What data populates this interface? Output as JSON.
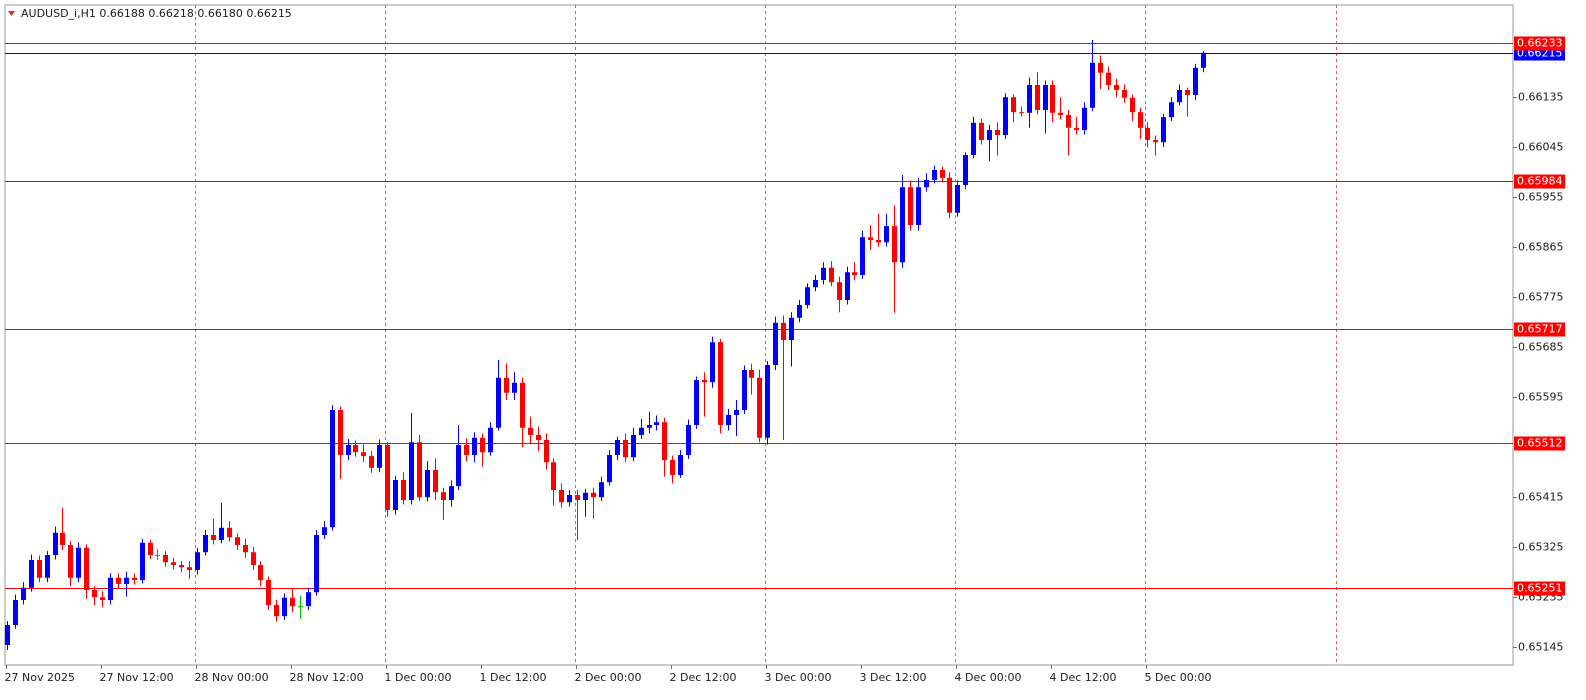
{
  "chart_data": {
    "type": "candlestick",
    "title": "AUDUSD_i,H1  0.66188 0.66218 0.66180 0.66215",
    "categories": [
      "27 Nov 2025",
      null,
      null,
      null,
      null,
      null,
      null,
      null,
      null,
      null,
      null,
      null,
      "27 Nov 12:00",
      null,
      null,
      null,
      null,
      null,
      null,
      null,
      null,
      null,
      null,
      null,
      "28 Nov 00:00",
      null,
      null,
      null,
      null,
      null,
      null,
      null,
      null,
      null,
      null,
      null,
      "28 Nov 12:00",
      null,
      null,
      null,
      null,
      null,
      null,
      null,
      null,
      null,
      null,
      null,
      "1 Dec 00:00",
      null,
      null,
      null,
      null,
      null,
      null,
      null,
      null,
      null,
      null,
      null,
      "1 Dec 12:00",
      null,
      null,
      null,
      null,
      null,
      null,
      null,
      null,
      null,
      null,
      null,
      "2 Dec 00:00",
      null,
      null,
      null,
      null,
      null,
      null,
      null,
      null,
      null,
      null,
      null,
      "2 Dec 12:00",
      null,
      null,
      null,
      null,
      null,
      null,
      null,
      null,
      null,
      null,
      null,
      "3 Dec 00:00",
      null,
      null,
      null,
      null,
      null,
      null,
      null,
      null,
      null,
      null,
      null,
      "3 Dec 12:00",
      null,
      null,
      null,
      null,
      null,
      null,
      null,
      null,
      null,
      null,
      null,
      "4 Dec 00:00",
      null,
      null,
      null,
      null,
      null,
      null,
      null,
      null,
      null,
      null,
      null,
      "4 Dec 12:00",
      null,
      null,
      null,
      null,
      null,
      null,
      null,
      null,
      null,
      null,
      null,
      "5 Dec 00:00",
      null,
      null,
      null,
      null,
      null,
      null,
      null
    ],
    "open": [
      0.65149,
      0.65185,
      0.6523,
      0.65252,
      0.65302,
      0.6527,
      0.65311,
      0.65351,
      0.65329,
      0.6527,
      0.65324,
      0.65248,
      0.65235,
      0.6523,
      0.6527,
      0.65259,
      0.6527,
      0.65266,
      0.65333,
      0.65311,
      0.65311,
      0.65298,
      0.65293,
      0.65289,
      0.65284,
      0.65316,
      0.65347,
      0.65338,
      0.6536,
      0.65343,
      0.65329,
      0.65316,
      0.65293,
      0.65266,
      0.65221,
      0.65201,
      0.65234,
      0.65219,
      0.65219,
      0.65244,
      0.65347,
      0.65361,
      0.65572,
      0.65491,
      0.65509,
      0.65496,
      0.65489,
      0.65468,
      0.65509,
      0.65392,
      0.65446,
      0.6541,
      0.65514,
      0.65415,
      0.65464,
      0.65424,
      0.6541,
      0.65435,
      0.65509,
      0.65491,
      0.65522,
      0.65496,
      0.6554,
      0.6563,
      0.65603,
      0.65621,
      0.6554,
      0.65527,
      0.65518,
      0.65478,
      0.65428,
      0.65406,
      0.65419,
      0.6541,
      0.65423,
      0.65415,
      0.65442,
      0.65491,
      0.65518,
      0.65487,
      0.65527,
      0.6554,
      0.65545,
      0.6555,
      0.65482,
      0.65455,
      0.65491,
      0.65545,
      0.65626,
      0.65622,
      0.65694,
      0.65545,
      0.65563,
      0.65572,
      0.65644,
      0.6563,
      0.65522,
      0.65653,
      0.65729,
      0.65698,
      0.65738,
      0.65761,
      0.65793,
      0.65806,
      0.65828,
      0.65802,
      0.6577,
      0.6582,
      0.65815,
      0.65883,
      0.65878,
      0.65874,
      0.65903,
      0.65838,
      0.65973,
      0.65905,
      0.65973,
      0.65986,
      0.66004,
      0.6599,
      0.65927,
      0.65977,
      0.66031,
      0.66089,
      0.66058,
      0.66076,
      0.66067,
      0.66135,
      0.66108,
      0.66107,
      0.66157,
      0.66112,
      0.66157,
      0.66107,
      0.66103,
      0.6608,
      0.66076,
      0.66116,
      0.66197,
      0.66179,
      0.66157,
      0.66148,
      0.66134,
      0.66108,
      0.6608,
      0.66058,
      0.66054,
      0.66099,
      0.66126,
      0.66148,
      0.66139,
      0.66188
    ],
    "high": [
      0.65192,
      0.6524,
      0.65262,
      0.65312,
      0.6531,
      0.65318,
      0.65362,
      0.65396,
      0.65336,
      0.65334,
      0.6533,
      0.65255,
      0.65246,
      0.65278,
      0.65278,
      0.65281,
      0.65278,
      0.6534,
      0.65338,
      0.65322,
      0.65318,
      0.65306,
      0.653,
      0.653,
      0.65324,
      0.65356,
      0.65376,
      0.65405,
      0.65372,
      0.6535,
      0.6534,
      0.65325,
      0.653,
      0.65272,
      0.6523,
      0.65242,
      0.6525,
      0.65237,
      0.65252,
      0.65356,
      0.65372,
      0.65581,
      0.65578,
      0.6552,
      0.65517,
      0.6551,
      0.65498,
      0.65519,
      0.65514,
      0.65453,
      0.6546,
      0.65567,
      0.65527,
      0.6548,
      0.65485,
      0.65432,
      0.65445,
      0.65545,
      0.65521,
      0.65532,
      0.6553,
      0.6555,
      0.65662,
      0.65656,
      0.6564,
      0.6563,
      0.6556,
      0.65542,
      0.6553,
      0.65485,
      0.6544,
      0.65428,
      0.65428,
      0.6543,
      0.65432,
      0.65452,
      0.655,
      0.65524,
      0.6553,
      0.6554,
      0.65556,
      0.65569,
      0.65562,
      0.65558,
      0.6549,
      0.655,
      0.65555,
      0.65632,
      0.6564,
      0.65704,
      0.657,
      0.65574,
      0.6559,
      0.65652,
      0.65655,
      0.65645,
      0.6566,
      0.6574,
      0.65742,
      0.65748,
      0.6577,
      0.658,
      0.65815,
      0.65838,
      0.6584,
      0.65812,
      0.6583,
      0.65838,
      0.65895,
      0.65905,
      0.65925,
      0.65925,
      0.6594,
      0.65995,
      0.65985,
      0.6599,
      0.65998,
      0.66012,
      0.6601,
      0.66,
      0.65985,
      0.66036,
      0.661,
      0.66096,
      0.66085,
      0.6609,
      0.66142,
      0.6614,
      0.66118,
      0.6617,
      0.6618,
      0.66165,
      0.66165,
      0.66135,
      0.66112,
      0.661,
      0.66126,
      0.66238,
      0.6621,
      0.6619,
      0.66168,
      0.66158,
      0.6614,
      0.66116,
      0.6609,
      0.66066,
      0.66105,
      0.66135,
      0.66158,
      0.66152,
      0.66195,
      0.66218
    ],
    "low": [
      0.6514,
      0.65178,
      0.65222,
      0.65245,
      0.65262,
      0.65262,
      0.65303,
      0.6532,
      0.65255,
      0.65262,
      0.65232,
      0.65221,
      0.65217,
      0.65222,
      0.6525,
      0.65236,
      0.65258,
      0.6526,
      0.65304,
      0.65302,
      0.6529,
      0.65285,
      0.6528,
      0.65268,
      0.65276,
      0.6531,
      0.6533,
      0.65332,
      0.65335,
      0.6532,
      0.65306,
      0.65284,
      0.65255,
      0.65212,
      0.65191,
      0.65194,
      0.65208,
      0.65196,
      0.65212,
      0.65238,
      0.6534,
      0.65355,
      0.65448,
      0.65482,
      0.65488,
      0.65478,
      0.65459,
      0.6546,
      0.6538,
      0.65384,
      0.65402,
      0.65402,
      0.65408,
      0.65408,
      0.6541,
      0.65374,
      0.65398,
      0.65428,
      0.6548,
      0.65478,
      0.6547,
      0.6549,
      0.65535,
      0.6559,
      0.6559,
      0.65505,
      0.65512,
      0.65498,
      0.65465,
      0.654,
      0.65396,
      0.65398,
      0.65338,
      0.6538,
      0.65376,
      0.65408,
      0.65436,
      0.65482,
      0.65478,
      0.6548,
      0.6552,
      0.6553,
      0.65535,
      0.65452,
      0.6544,
      0.6545,
      0.65484,
      0.65538,
      0.6556,
      0.65612,
      0.6553,
      0.65535,
      0.65525,
      0.65565,
      0.656,
      0.65514,
      0.6551,
      0.65644,
      0.65518,
      0.6565,
      0.6573,
      0.65755,
      0.65786,
      0.65798,
      0.65795,
      0.65748,
      0.65762,
      0.65805,
      0.65808,
      0.6586,
      0.65866,
      0.65866,
      0.65747,
      0.65828,
      0.65895,
      0.65895,
      0.65965,
      0.6598,
      0.65982,
      0.65917,
      0.6592,
      0.6597,
      0.66025,
      0.6605,
      0.6602,
      0.6603,
      0.6606,
      0.6609,
      0.661,
      0.6608,
      0.66104,
      0.6607,
      0.6609,
      0.66095,
      0.6603,
      0.66068,
      0.66068,
      0.6611,
      0.6615,
      0.66148,
      0.66135,
      0.66125,
      0.66092,
      0.6606,
      0.66045,
      0.6603,
      0.66045,
      0.66092,
      0.6612,
      0.661,
      0.6613,
      0.6618
    ],
    "close": [
      0.65185,
      0.6523,
      0.65252,
      0.65302,
      0.6527,
      0.65311,
      0.65351,
      0.65329,
      0.6527,
      0.65324,
      0.65248,
      0.65235,
      0.6523,
      0.6527,
      0.65259,
      0.6527,
      0.65266,
      0.65333,
      0.65311,
      0.65311,
      0.65298,
      0.65293,
      0.65289,
      0.65284,
      0.65316,
      0.65347,
      0.65338,
      0.6536,
      0.65343,
      0.65329,
      0.65316,
      0.65293,
      0.65266,
      0.65221,
      0.65201,
      0.65234,
      0.65219,
      0.65219,
      0.65244,
      0.65347,
      0.65361,
      0.65572,
      0.65491,
      0.65509,
      0.65496,
      0.65489,
      0.65468,
      0.65509,
      0.65392,
      0.65446,
      0.6541,
      0.65514,
      0.65415,
      0.65464,
      0.65424,
      0.6541,
      0.65435,
      0.65509,
      0.65491,
      0.65522,
      0.65496,
      0.6554,
      0.6563,
      0.65603,
      0.65621,
      0.6554,
      0.65527,
      0.65518,
      0.65478,
      0.65428,
      0.65406,
      0.65419,
      0.6541,
      0.65423,
      0.65415,
      0.65442,
      0.65491,
      0.65518,
      0.65487,
      0.65527,
      0.6554,
      0.65545,
      0.6555,
      0.65482,
      0.65455,
      0.65491,
      0.65545,
      0.65626,
      0.65622,
      0.65694,
      0.65545,
      0.65563,
      0.65572,
      0.65644,
      0.6563,
      0.65522,
      0.65653,
      0.65729,
      0.65698,
      0.65738,
      0.65761,
      0.65793,
      0.65806,
      0.65828,
      0.65802,
      0.6577,
      0.6582,
      0.65815,
      0.65883,
      0.65878,
      0.65874,
      0.65903,
      0.65838,
      0.65973,
      0.65905,
      0.65973,
      0.65986,
      0.66004,
      0.6599,
      0.65927,
      0.65977,
      0.66031,
      0.66089,
      0.66058,
      0.66076,
      0.66067,
      0.66135,
      0.66108,
      0.66107,
      0.66157,
      0.66112,
      0.66157,
      0.66107,
      0.66103,
      0.6608,
      0.66076,
      0.66116,
      0.66197,
      0.66179,
      0.66157,
      0.66148,
      0.66134,
      0.66108,
      0.6608,
      0.66058,
      0.66054,
      0.66099,
      0.66126,
      0.66148,
      0.66139,
      0.66188,
      0.66215
    ],
    "up_color": "#0000ff",
    "down_color": "#ff0000",
    "doji_color": "#00c000",
    "ylim": [
      0.65113,
      0.66301
    ],
    "yticks": [
      0.66135,
      0.66045,
      0.65955,
      0.65865,
      0.65775,
      0.65685,
      0.65595,
      0.65415,
      0.65325,
      0.65235,
      0.65145
    ],
    "grid": true,
    "grid_color": "#f05a28",
    "levels": [
      0.66233,
      0.65984,
      0.65717,
      0.65512,
      0.65251
    ],
    "level_color": "#ff0000",
    "bid": 0.66215,
    "bid_color": "#0000ff"
  }
}
